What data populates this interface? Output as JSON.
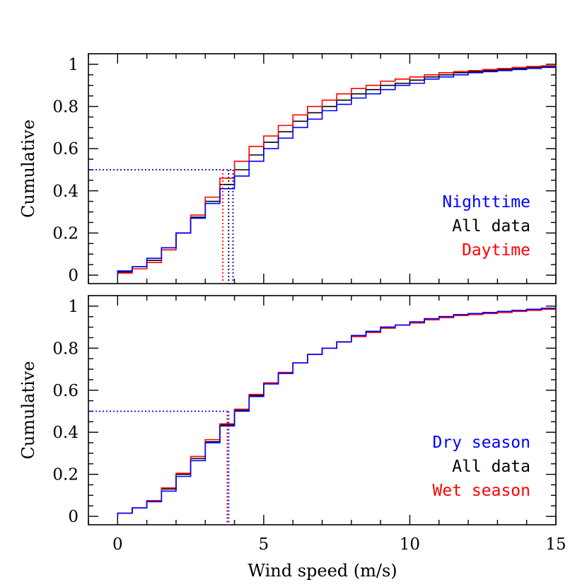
{
  "chart_data": [
    {
      "type": "line",
      "subtype": "step-cumulative",
      "panel": "top",
      "title": "",
      "xlabel": "Wind speed (m/s)",
      "ylabel": "Cumulative",
      "xlim": [
        -1,
        15
      ],
      "ylim": [
        -0.04,
        1.05
      ],
      "xticks": [
        0,
        5,
        10,
        15
      ],
      "xtick_labels": [
        "0",
        "5",
        "10",
        "15"
      ],
      "yticks": [
        0,
        0.2,
        0.4,
        0.6,
        0.8,
        1
      ],
      "ytick_labels": [
        "0",
        "0.2",
        "0.4",
        "0.6",
        "0.8",
        "1"
      ],
      "bin_edges": [
        0,
        0.5,
        1,
        1.5,
        2,
        2.5,
        3,
        3.5,
        4,
        4.5,
        5,
        5.5,
        6,
        6.5,
        7,
        7.5,
        8,
        8.5,
        9,
        9.5,
        10,
        10.5,
        11,
        11.5,
        12,
        12.5,
        13,
        13.5,
        14,
        14.5,
        15
      ],
      "series": [
        {
          "name": "Nighttime",
          "color": "#0000ff",
          "median": 3.95,
          "values": [
            0.02,
            0.04,
            0.08,
            0.13,
            0.2,
            0.27,
            0.34,
            0.41,
            0.47,
            0.54,
            0.6,
            0.65,
            0.7,
            0.74,
            0.78,
            0.81,
            0.84,
            0.86,
            0.88,
            0.9,
            0.91,
            0.93,
            0.94,
            0.95,
            0.96,
            0.965,
            0.97,
            0.975,
            0.98,
            0.985
          ]
        },
        {
          "name": "All data",
          "color": "#000000",
          "median": 3.8,
          "values": [
            0.015,
            0.04,
            0.07,
            0.13,
            0.2,
            0.275,
            0.35,
            0.43,
            0.5,
            0.57,
            0.63,
            0.68,
            0.73,
            0.77,
            0.8,
            0.83,
            0.86,
            0.88,
            0.9,
            0.91,
            0.925,
            0.94,
            0.95,
            0.96,
            0.965,
            0.97,
            0.975,
            0.98,
            0.985,
            0.99
          ]
        },
        {
          "name": "Daytime",
          "color": "#ff0000",
          "median": 3.6,
          "values": [
            0.01,
            0.03,
            0.06,
            0.12,
            0.2,
            0.285,
            0.37,
            0.46,
            0.54,
            0.61,
            0.66,
            0.71,
            0.76,
            0.8,
            0.83,
            0.86,
            0.885,
            0.9,
            0.92,
            0.93,
            0.94,
            0.95,
            0.96,
            0.965,
            0.97,
            0.975,
            0.98,
            0.985,
            0.99,
            0.993
          ]
        }
      ],
      "median_level": 0.5,
      "legend": [
        "Nighttime",
        "All data",
        "Daytime"
      ],
      "legend_position": "lower-right"
    },
    {
      "type": "line",
      "subtype": "step-cumulative",
      "panel": "bottom",
      "title": "",
      "xlabel": "Wind speed (m/s)",
      "ylabel": "Cumulative",
      "xlim": [
        -1,
        15
      ],
      "ylim": [
        -0.04,
        1.05
      ],
      "xticks": [
        0,
        5,
        10,
        15
      ],
      "xtick_labels": [
        "0",
        "5",
        "10",
        "15"
      ],
      "yticks": [
        0,
        0.2,
        0.4,
        0.6,
        0.8,
        1
      ],
      "ytick_labels": [
        "0",
        "0.2",
        "0.4",
        "0.6",
        "0.8",
        "1"
      ],
      "bin_edges": [
        0,
        0.5,
        1,
        1.5,
        2,
        2.5,
        3,
        3.5,
        4,
        4.5,
        5,
        5.5,
        6,
        6.5,
        7,
        7.5,
        8,
        8.5,
        9,
        9.5,
        10,
        10.5,
        11,
        11.5,
        12,
        12.5,
        13,
        13.5,
        14,
        14.5,
        15
      ],
      "series": [
        {
          "name": "Dry season",
          "color": "#0000ff",
          "median": 3.8,
          "values": [
            0.015,
            0.04,
            0.07,
            0.12,
            0.19,
            0.265,
            0.35,
            0.43,
            0.5,
            0.57,
            0.63,
            0.68,
            0.73,
            0.77,
            0.8,
            0.83,
            0.86,
            0.88,
            0.9,
            0.91,
            0.925,
            0.94,
            0.95,
            0.96,
            0.965,
            0.97,
            0.975,
            0.98,
            0.985,
            0.99
          ]
        },
        {
          "name": "All data",
          "color": "#000000",
          "median": 3.8,
          "values": [
            0.015,
            0.04,
            0.07,
            0.13,
            0.2,
            0.275,
            0.355,
            0.435,
            0.505,
            0.575,
            0.63,
            0.68,
            0.73,
            0.77,
            0.8,
            0.83,
            0.86,
            0.88,
            0.9,
            0.91,
            0.925,
            0.94,
            0.95,
            0.96,
            0.965,
            0.97,
            0.975,
            0.98,
            0.985,
            0.99
          ]
        },
        {
          "name": "Wet season",
          "color": "#ff0000",
          "median": 3.75,
          "values": [
            0.015,
            0.04,
            0.075,
            0.135,
            0.205,
            0.285,
            0.365,
            0.44,
            0.51,
            0.58,
            0.635,
            0.685,
            0.73,
            0.77,
            0.8,
            0.83,
            0.855,
            0.875,
            0.895,
            0.91,
            0.92,
            0.935,
            0.945,
            0.955,
            0.96,
            0.965,
            0.97,
            0.975,
            0.98,
            0.985
          ]
        }
      ],
      "median_level": 0.5,
      "legend": [
        "Dry season",
        "All data",
        "Wet season"
      ],
      "legend_position": "lower-right"
    }
  ]
}
